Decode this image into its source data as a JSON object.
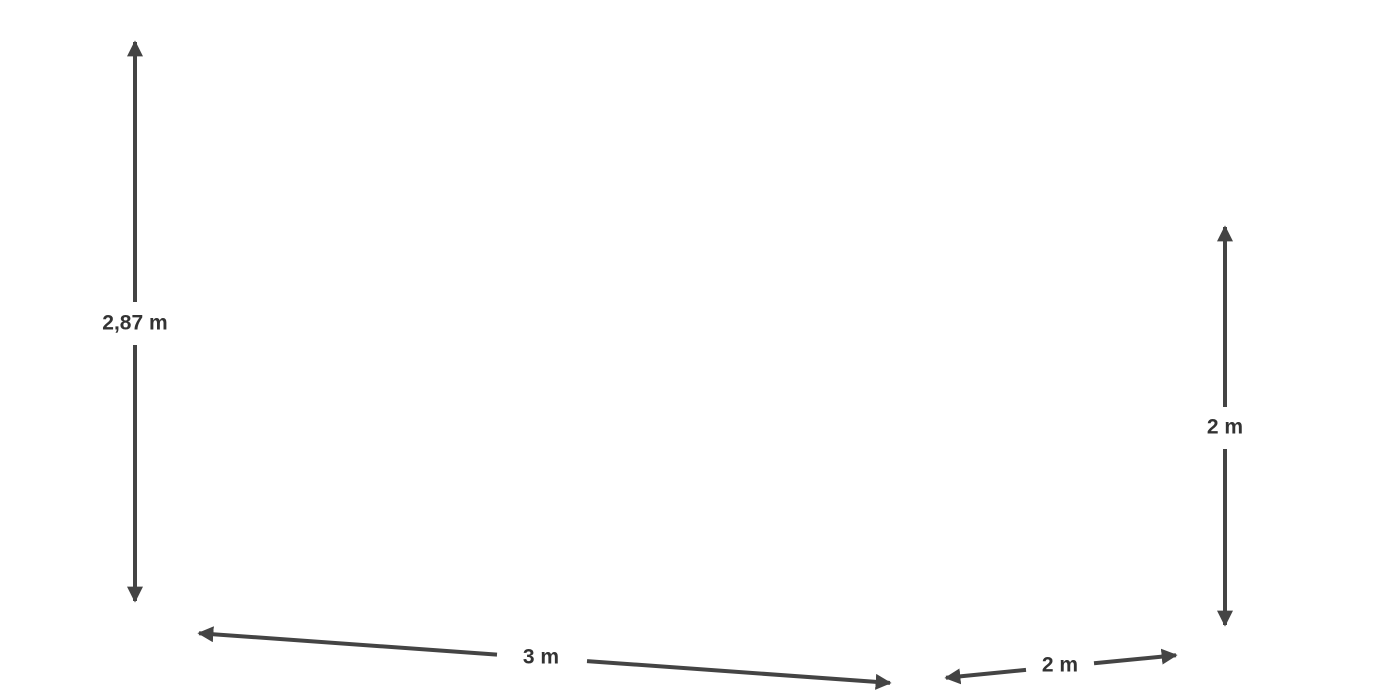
{
  "dimensions": [
    {
      "label": "2,87 m"
    },
    {
      "label": "3 m"
    },
    {
      "label": "2 m"
    },
    {
      "label": "2 m"
    }
  ]
}
